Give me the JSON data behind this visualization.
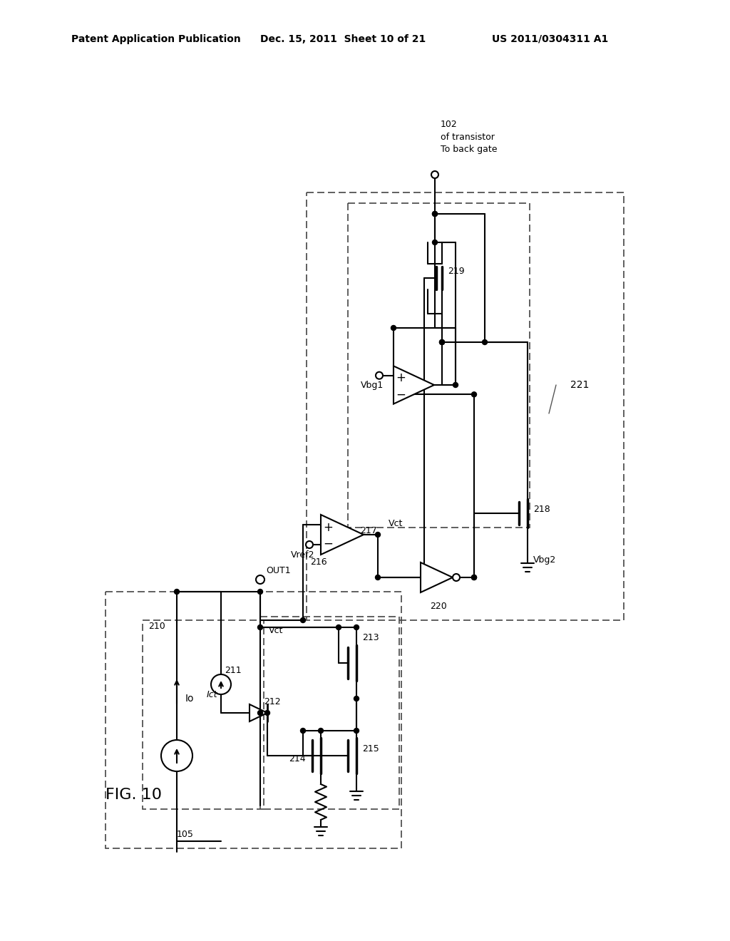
{
  "header_left": "Patent Application Publication",
  "header_mid": "Dec. 15, 2011  Sheet 10 of 21",
  "header_right": "US 2011/0304311 A1",
  "fig_label": "FIG. 10",
  "bg_color": "#ffffff"
}
